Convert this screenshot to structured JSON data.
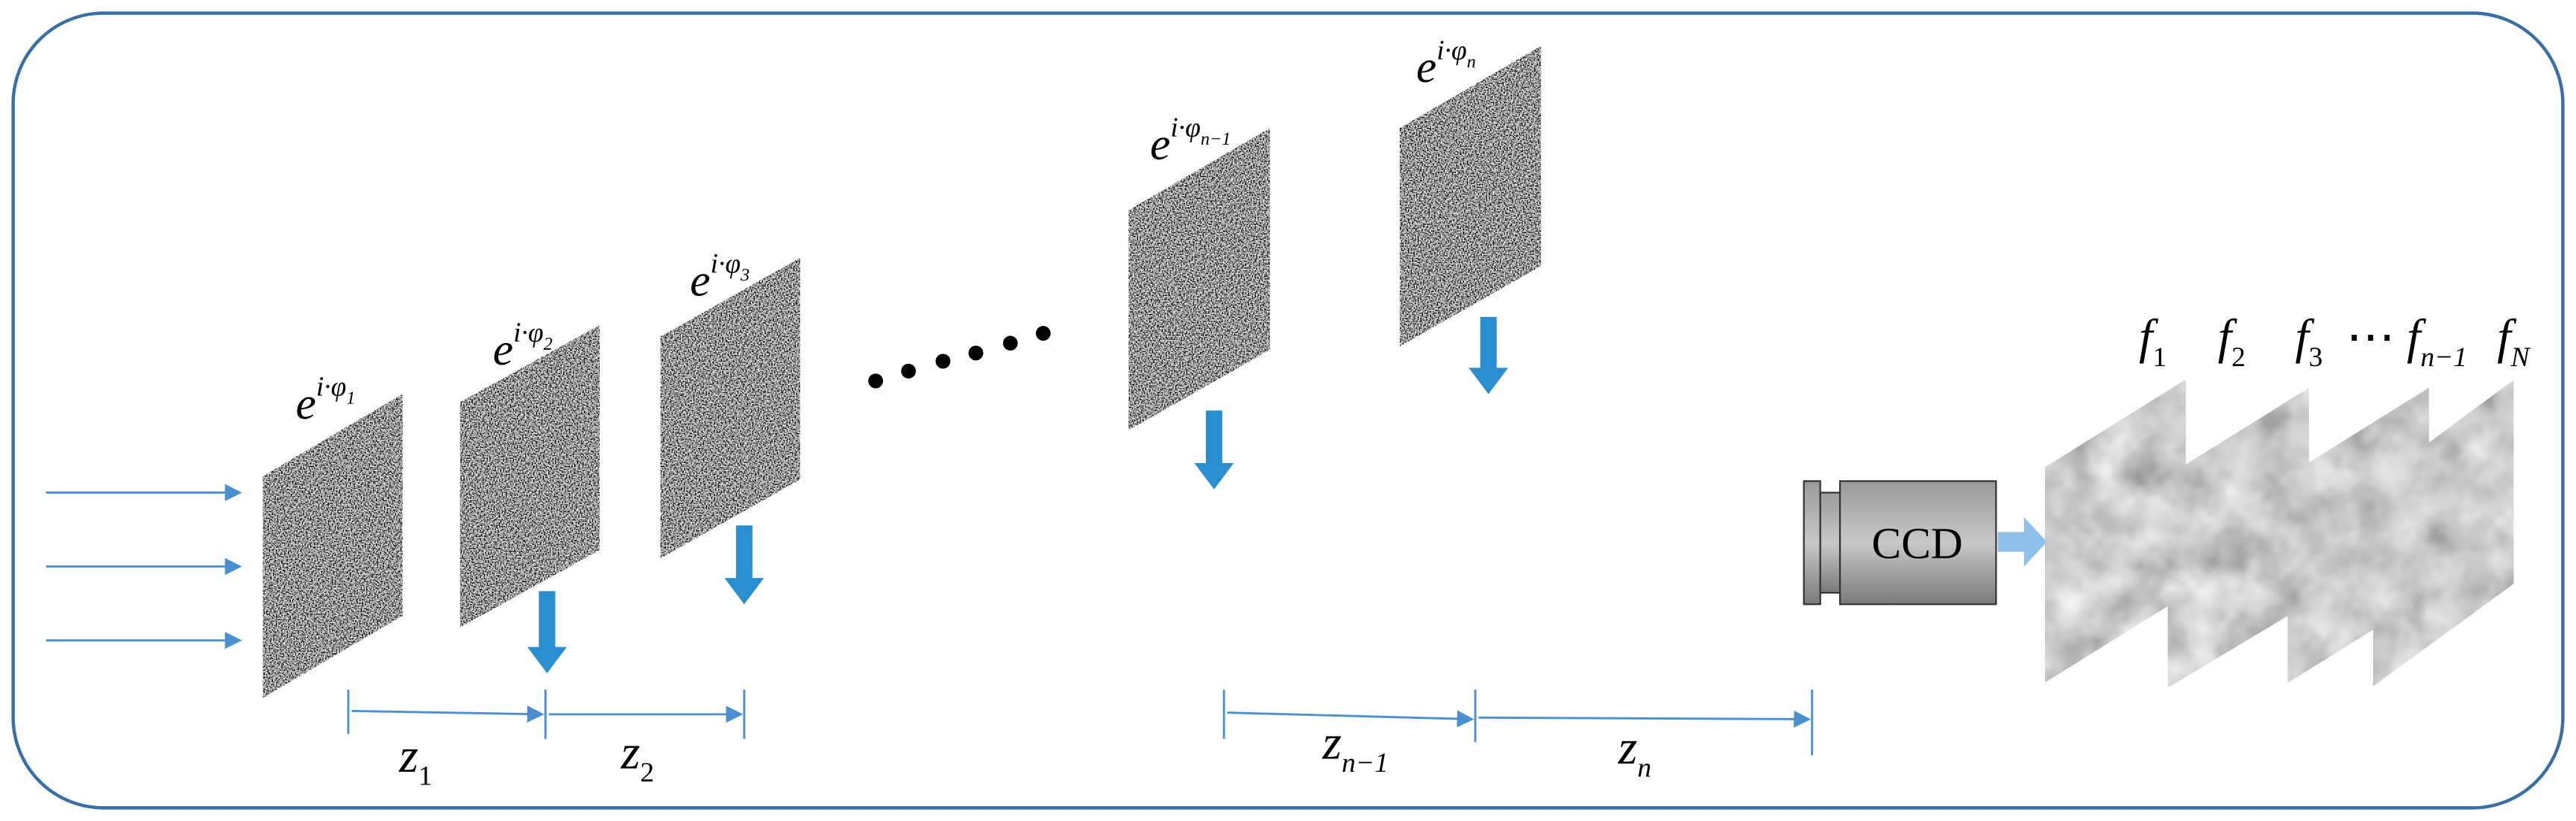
{
  "masks": [
    {
      "base": "e",
      "exponent": "i·φ",
      "index": "1"
    },
    {
      "base": "e",
      "exponent": "i·φ",
      "index": "2"
    },
    {
      "base": "e",
      "exponent": "i·φ",
      "index": "3"
    },
    {
      "base": "e",
      "exponent": "i·φ",
      "index": "n−1"
    },
    {
      "base": "e",
      "exponent": "i·φ",
      "index": "n"
    }
  ],
  "distances": [
    {
      "symbol": "z",
      "index": "1"
    },
    {
      "symbol": "z",
      "index": "2"
    },
    {
      "symbol": "z",
      "index": "n−1"
    },
    {
      "symbol": "z",
      "index": "n"
    }
  ],
  "camera": {
    "label": "CCD"
  },
  "images": [
    {
      "symbol": "f",
      "index": "1"
    },
    {
      "symbol": "f",
      "index": "2"
    },
    {
      "symbol": "f",
      "index": "3"
    },
    {
      "symbol": "f",
      "index": "n−1"
    },
    {
      "symbol": "f",
      "index": "N"
    }
  ],
  "ellipsis": "⋯"
}
